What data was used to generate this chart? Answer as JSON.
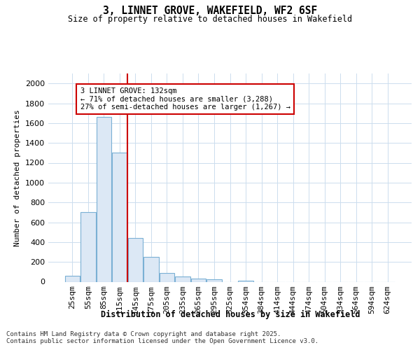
{
  "title_line1": "3, LINNET GROVE, WAKEFIELD, WF2 6SF",
  "title_line2": "Size of property relative to detached houses in Wakefield",
  "xlabel": "Distribution of detached houses by size in Wakefield",
  "ylabel": "Number of detached properties",
  "categories": [
    "25sqm",
    "55sqm",
    "85sqm",
    "115sqm",
    "145sqm",
    "175sqm",
    "205sqm",
    "235sqm",
    "265sqm",
    "295sqm",
    "325sqm",
    "354sqm",
    "384sqm",
    "414sqm",
    "444sqm",
    "474sqm",
    "504sqm",
    "534sqm",
    "564sqm",
    "594sqm",
    "624sqm"
  ],
  "values": [
    60,
    700,
    1660,
    1300,
    440,
    250,
    90,
    55,
    30,
    25,
    0,
    10,
    0,
    0,
    0,
    0,
    0,
    0,
    0,
    0,
    0
  ],
  "bar_color": "#dce8f5",
  "bar_edge_color": "#7ab0d4",
  "vline_color": "#cc0000",
  "vline_x": 3.5,
  "annotation_text": "3 LINNET GROVE: 132sqm\n← 71% of detached houses are smaller (3,288)\n27% of semi-detached houses are larger (1,267) →",
  "annotation_box_edgecolor": "#cc0000",
  "annotation_box_facecolor": "#ffffff",
  "ylim": [
    0,
    2100
  ],
  "yticks": [
    0,
    200,
    400,
    600,
    800,
    1000,
    1200,
    1400,
    1600,
    1800,
    2000
  ],
  "footer_line1": "Contains HM Land Registry data © Crown copyright and database right 2025.",
  "footer_line2": "Contains public sector information licensed under the Open Government Licence v3.0.",
  "bg_color": "#ffffff",
  "grid_color": "#ccddee"
}
